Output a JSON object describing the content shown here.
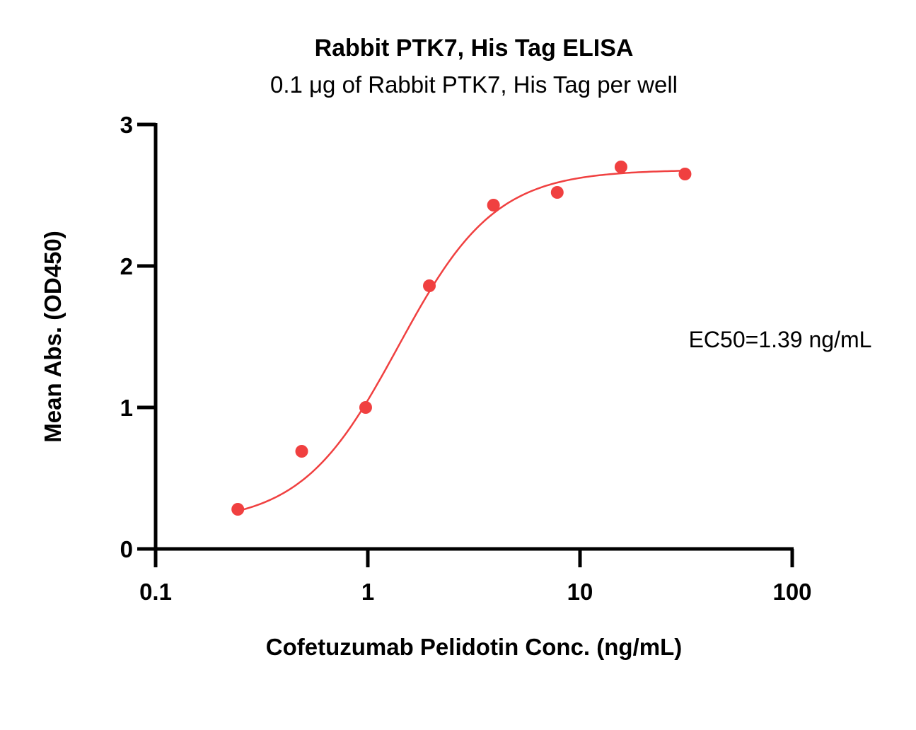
{
  "chart_data": {
    "type": "scatter",
    "title": "Rabbit PTK7, His Tag ELISA",
    "subtitle": "0.1 μg of Rabbit PTK7, His Tag per well",
    "xlabel": "Cofetuzumab Pelidotin Conc. (ng/mL)",
    "ylabel": "Mean Abs. (OD450)",
    "x_scale": "log",
    "xlim": [
      0.1,
      100
    ],
    "ylim": [
      0,
      3
    ],
    "x_ticks": [
      0.1,
      1,
      10,
      100
    ],
    "x_tick_labels": [
      "0.1",
      "1",
      "10",
      "100"
    ],
    "y_ticks": [
      0,
      1,
      2,
      3
    ],
    "y_tick_labels": [
      "0",
      "1",
      "2",
      "3"
    ],
    "grid": false,
    "color": "#f04040",
    "series": [
      {
        "x": [
          0.244,
          0.488,
          0.977,
          1.95,
          3.91,
          7.81,
          15.6,
          31.25
        ],
        "y": [
          0.28,
          0.69,
          1.0,
          1.86,
          2.43,
          2.52,
          2.7,
          2.65
        ]
      }
    ],
    "fit": {
      "model": "4PL",
      "bottom": 0.18,
      "top": 2.68,
      "ec50": 1.39,
      "hill": 1.9
    },
    "annotation": "EC50=1.39 ng/mL"
  }
}
